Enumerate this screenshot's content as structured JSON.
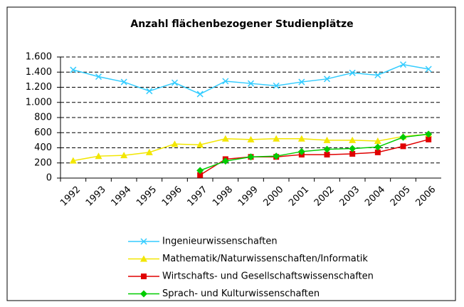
{
  "chart_data": {
    "type": "line",
    "title": "Anzahl flächenbezogener Studienplätze",
    "categories": [
      "1992",
      "1993",
      "1994",
      "1995",
      "1996",
      "1997",
      "1998",
      "1999",
      "2000",
      "2001",
      "2002",
      "2003",
      "2004",
      "2005",
      "2006"
    ],
    "series": [
      {
        "name": "Ingenieurwissenschaften",
        "color": "#33ccff",
        "marker": "x",
        "values": [
          1430,
          1340,
          1270,
          1150,
          1260,
          1110,
          1280,
          1250,
          1220,
          1270,
          1310,
          1390,
          1360,
          1500,
          1440
        ]
      },
      {
        "name": "Mathematik/Naturwissenschaften/Informatik",
        "color": "#f2e600",
        "marker": "triangle",
        "values": [
          230,
          290,
          300,
          340,
          450,
          440,
          520,
          510,
          520,
          520,
          500,
          500,
          490,
          550,
          580
        ]
      },
      {
        "name": "Wirtschafts- und Gesellschaftswissenschaften",
        "color": "#e00000",
        "marker": "square",
        "values": [
          null,
          null,
          null,
          null,
          null,
          40,
          250,
          280,
          280,
          310,
          310,
          320,
          340,
          420,
          510
        ]
      },
      {
        "name": "Sprach- und Kulturwissenschaften",
        "color": "#00cc00",
        "marker": "diamond",
        "values": [
          null,
          null,
          null,
          null,
          null,
          100,
          225,
          280,
          290,
          350,
          380,
          390,
          410,
          540,
          580
        ]
      }
    ],
    "ylim": [
      0,
      1600
    ],
    "yticks": [
      0,
      200,
      400,
      600,
      800,
      {
        "value": 1000,
        "label": "1.000"
      },
      {
        "value": 1200,
        "label": "1.200"
      },
      {
        "value": 1400,
        "label": "1.400"
      },
      {
        "value": 1600,
        "label": "1.600"
      }
    ],
    "grid": true
  }
}
